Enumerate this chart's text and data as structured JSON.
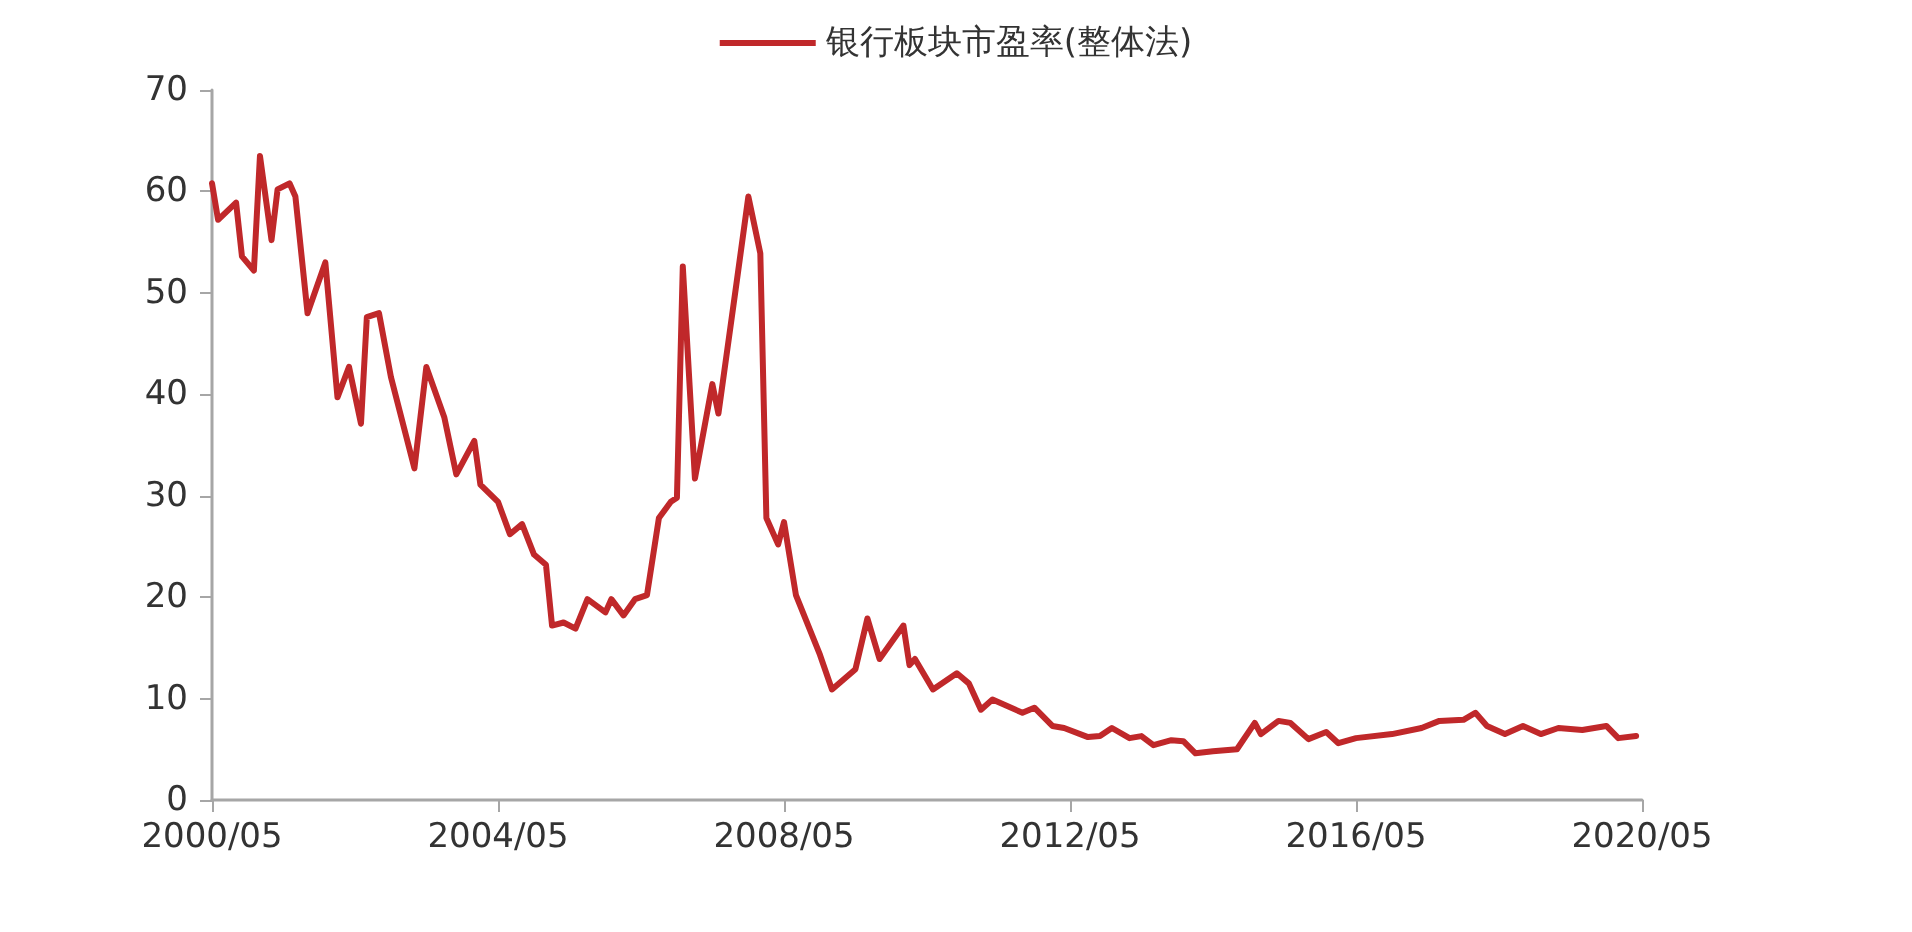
{
  "chart_data": {
    "type": "line",
    "legend": "top",
    "grid": false,
    "marker": "none",
    "line_style": "solid",
    "xlim": [
      "2000-05",
      "2020-05"
    ],
    "xticks": [
      {
        "value": "2000-05",
        "label": "2000/05"
      },
      {
        "value": "2004-05",
        "label": "2004/05"
      },
      {
        "value": "2008-05",
        "label": "2008/05"
      },
      {
        "value": "2012-05",
        "label": "2012/05"
      },
      {
        "value": "2016-05",
        "label": "2016/05"
      },
      {
        "value": "2020-05",
        "label": "2020/05"
      }
    ],
    "ylim": [
      0,
      70
    ],
    "yticks": [
      0,
      10,
      20,
      30,
      40,
      50,
      60,
      70
    ],
    "x": [
      "2000-05",
      "2000-06",
      "2000-09",
      "2000-10",
      "2000-12",
      "2001-01",
      "2001-03",
      "2001-04",
      "2001-06",
      "2001-07",
      "2001-09",
      "2001-12",
      "2002-02",
      "2002-04",
      "2002-06",
      "2002-07",
      "2002-09",
      "2002-11",
      "2003-03",
      "2003-05",
      "2003-08",
      "2003-10",
      "2004-01",
      "2004-02",
      "2004-05",
      "2004-07",
      "2004-09",
      "2004-11",
      "2005-01",
      "2005-02",
      "2005-04",
      "2005-06",
      "2005-08",
      "2005-11",
      "2005-12",
      "2006-02",
      "2006-04",
      "2006-06",
      "2006-08",
      "2006-10",
      "2006-11",
      "2006-12",
      "2007-02",
      "2007-05",
      "2007-06",
      "2007-09",
      "2007-11",
      "2008-01",
      "2008-02",
      "2008-04",
      "2008-05",
      "2008-07",
      "2008-11",
      "2009-01",
      "2009-05",
      "2009-07",
      "2009-09",
      "2010-01",
      "2010-02",
      "2010-03",
      "2010-06",
      "2010-10",
      "2010-12",
      "2011-02",
      "2011-04",
      "2011-09",
      "2011-11",
      "2012-02",
      "2012-04",
      "2012-08",
      "2012-10",
      "2012-12",
      "2013-03",
      "2013-05",
      "2013-07",
      "2013-10",
      "2013-12",
      "2014-02",
      "2014-05",
      "2014-09",
      "2014-12",
      "2015-01",
      "2015-04",
      "2015-06",
      "2015-09",
      "2015-12",
      "2016-02",
      "2016-05",
      "2016-11",
      "2017-04",
      "2017-07",
      "2017-11",
      "2018-01",
      "2018-03",
      "2018-06",
      "2018-09",
      "2018-12",
      "2019-03",
      "2019-07",
      "2019-11",
      "2020-01",
      "2020-04"
    ],
    "series": [
      {
        "name": "银行板块市盈率(整体法)",
        "color": "#c0282a",
        "values": [
          60.8,
          57.2,
          58.9,
          53.6,
          52.2,
          63.5,
          55.2,
          60.2,
          60.8,
          59.5,
          48.0,
          53.0,
          39.7,
          42.7,
          37.1,
          47.6,
          48.0,
          41.7,
          32.7,
          42.7,
          37.7,
          32.1,
          35.4,
          31.1,
          29.4,
          26.2,
          27.2,
          24.2,
          23.2,
          17.2,
          17.5,
          16.9,
          19.8,
          18.5,
          19.8,
          18.2,
          19.8,
          20.2,
          27.8,
          29.4,
          29.8,
          52.6,
          31.7,
          41.0,
          38.1,
          50.9,
          59.5,
          53.9,
          27.8,
          25.2,
          27.4,
          20.2,
          14.3,
          10.9,
          12.9,
          17.9,
          13.9,
          17.2,
          13.3,
          13.9,
          10.9,
          12.5,
          11.5,
          8.9,
          9.9,
          8.6,
          9.1,
          7.3,
          7.1,
          6.2,
          6.3,
          7.1,
          6.1,
          6.3,
          5.4,
          5.9,
          5.8,
          4.6,
          4.8,
          5.0,
          7.6,
          6.5,
          7.8,
          7.6,
          6.0,
          6.7,
          5.6,
          6.1,
          6.5,
          7.1,
          7.8,
          7.9,
          8.6,
          7.3,
          6.5,
          7.3,
          6.5,
          7.1,
          6.9,
          7.3,
          6.1,
          6.3
        ]
      }
    ]
  }
}
